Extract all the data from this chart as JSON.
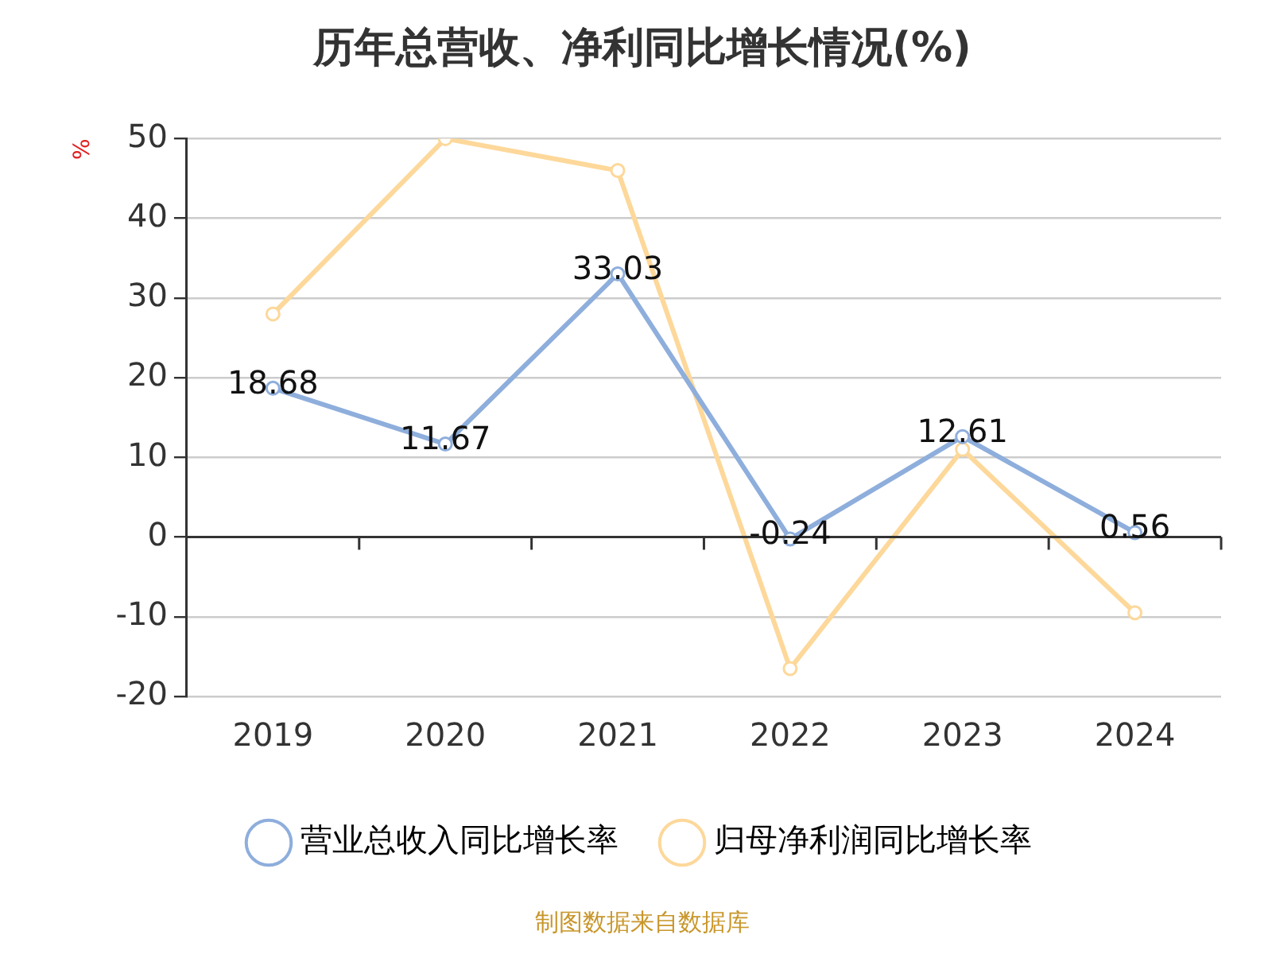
{
  "chart_data": {
    "type": "line",
    "title": "历年总营收、净利同比增长情况(%)",
    "ylabel": "%",
    "categories": [
      "2019",
      "2020",
      "2021",
      "2022",
      "2023",
      "2024"
    ],
    "series": [
      {
        "name": "营业总收入同比增长率",
        "color": "#8eaedc",
        "values": [
          18.68,
          11.67,
          33.03,
          -0.24,
          12.61,
          0.56
        ],
        "value_labels": [
          "18.68",
          "11.67",
          "33.03",
          "-0.24",
          "12.61",
          "0.56"
        ]
      },
      {
        "name": "归母净利润同比增长率",
        "color": "#fdd89a",
        "values": [
          28,
          50,
          46,
          -16.5,
          11,
          -9.5
        ]
      }
    ],
    "ylim": [
      -20,
      50
    ],
    "yticks": [
      -20,
      -10,
      0,
      10,
      20,
      30,
      40,
      50
    ],
    "grid": "y",
    "legend": "bottom",
    "marker": "circle",
    "line_style": "solid",
    "annotations": [
      "制图数据来自数据库"
    ]
  }
}
